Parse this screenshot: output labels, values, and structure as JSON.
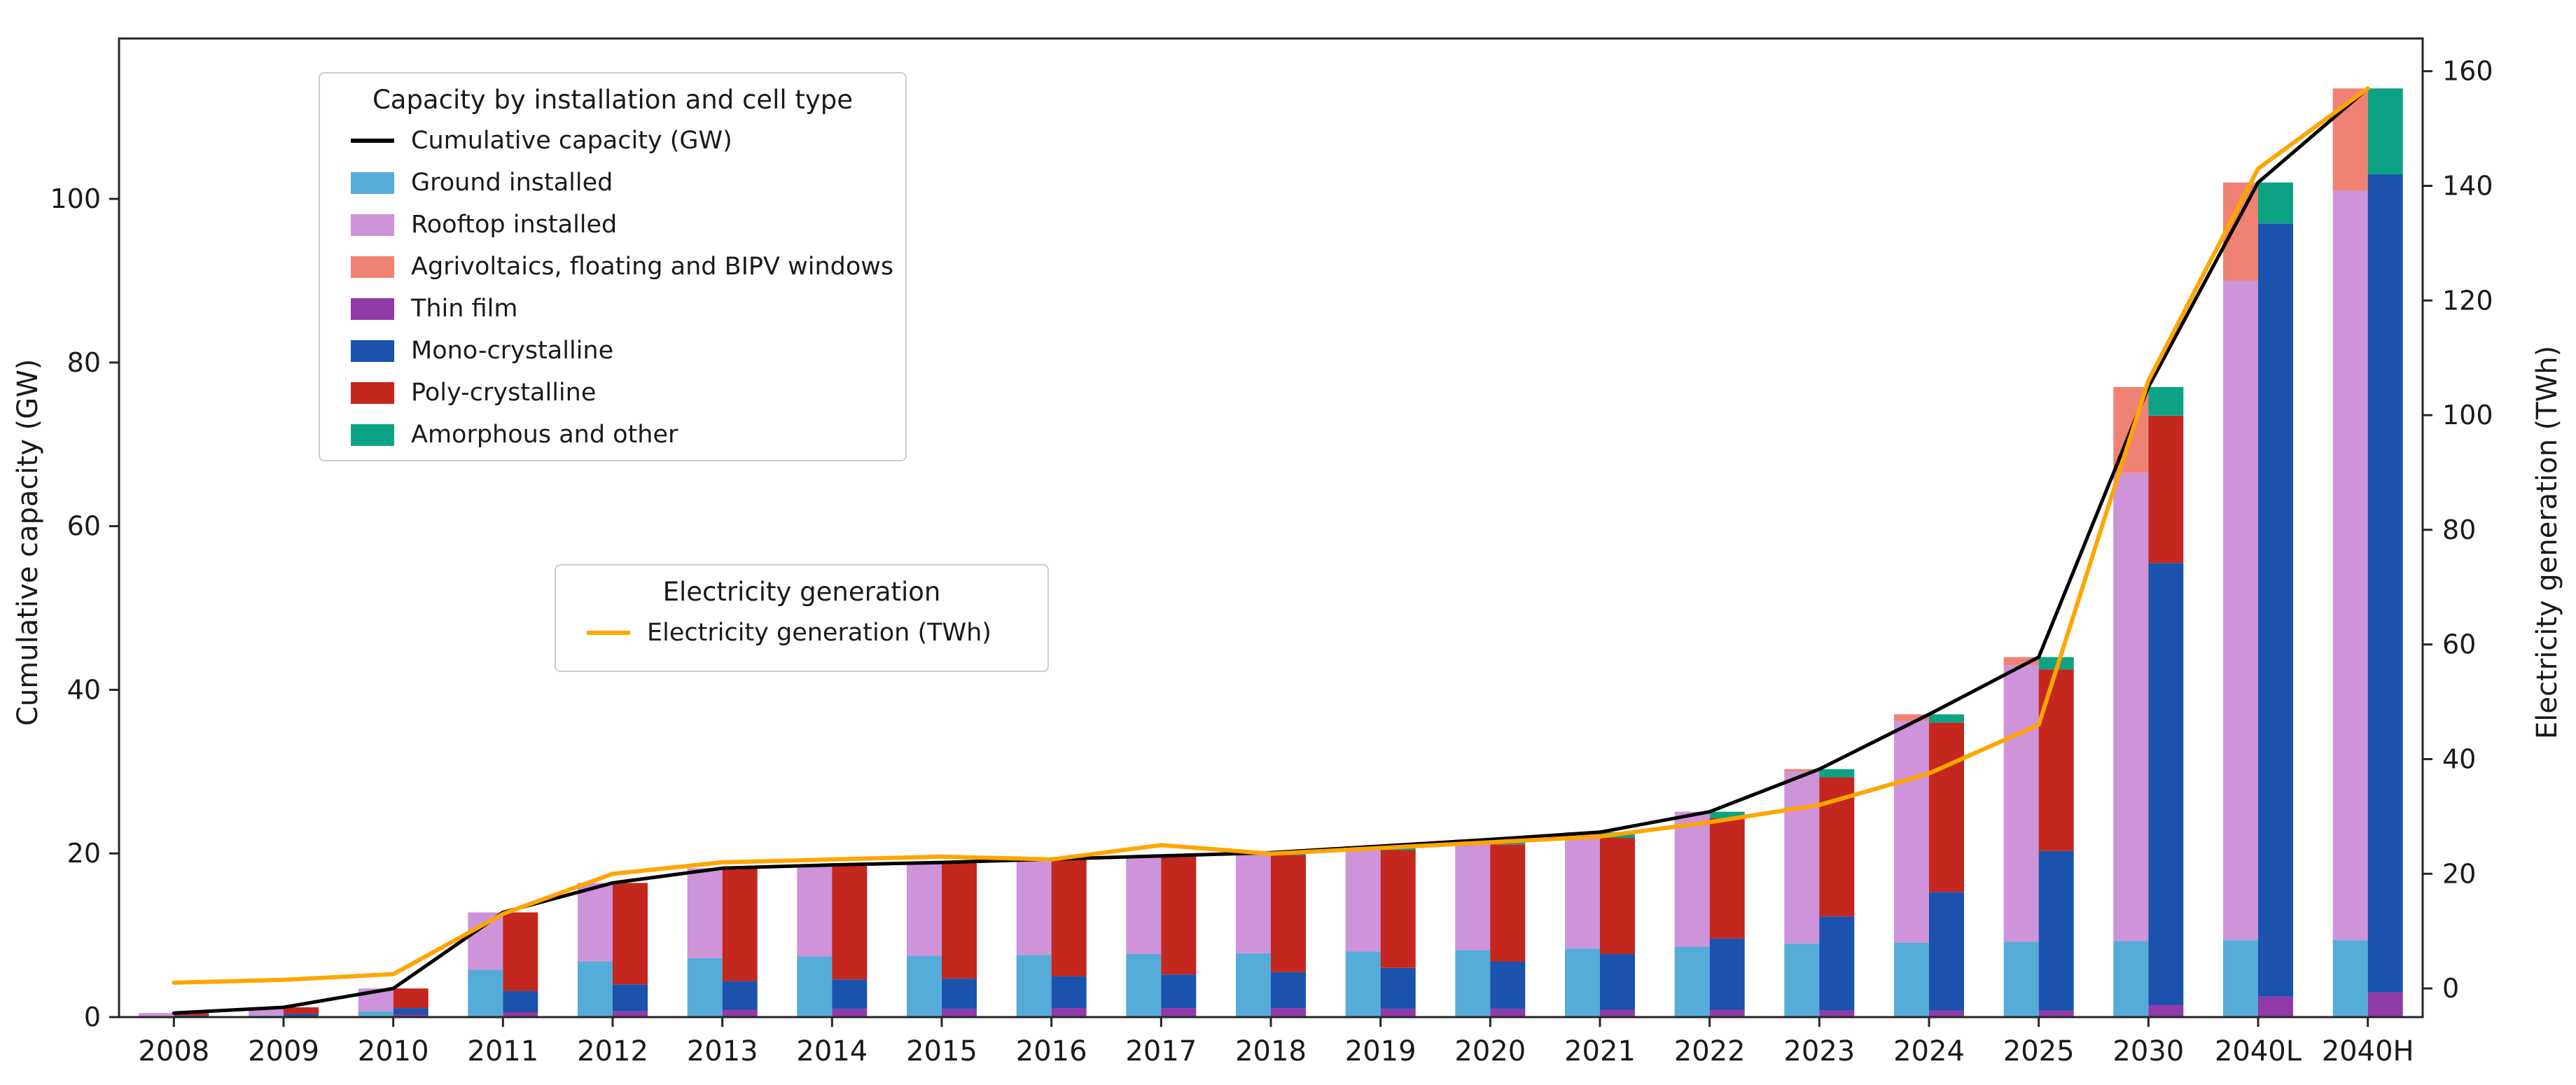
{
  "figure": {
    "background_color": "#ffffff",
    "spine_color": "#262626",
    "left_axis": {
      "label": "Cumulative capacity (GW)",
      "tick_labels": [
        "0",
        "20",
        "40",
        "60",
        "80",
        "100"
      ],
      "tick_values": [
        0,
        20,
        40,
        60,
        80,
        100
      ]
    },
    "right_axis": {
      "label": "Electricity generation (TWh)",
      "tick_labels": [
        "0",
        "20",
        "40",
        "60",
        "80",
        "100",
        "120",
        "140",
        "160"
      ],
      "tick_values": [
        0,
        20,
        40,
        60,
        80,
        100,
        120,
        140,
        160
      ]
    }
  },
  "legend_capacity": {
    "title": "Capacity by installation and cell type",
    "items": [
      {
        "label": "Cumulative capacity (GW)",
        "color": "#000000",
        "type": "line"
      },
      {
        "label": "Ground installed",
        "color": "#56ACD8",
        "type": "patch"
      },
      {
        "label": "Rooftop installed",
        "color": "#CE93D8",
        "type": "patch"
      },
      {
        "label": "Agrivoltaics, floating and BIPV windows",
        "color": "#F08274",
        "type": "patch"
      },
      {
        "label": "Thin film",
        "color": "#9139A8",
        "type": "patch"
      },
      {
        "label": "Mono-crystalline",
        "color": "#1A52AE",
        "type": "patch"
      },
      {
        "label": "Poly-crystalline",
        "color": "#C3271E",
        "type": "patch"
      },
      {
        "label": "Amorphous and other",
        "color": "#0CA384",
        "type": "patch"
      }
    ]
  },
  "legend_generation": {
    "title": "Electricity generation",
    "items": [
      {
        "label": "Electricity generation (TWh)",
        "color": "#FFA500",
        "type": "line"
      }
    ]
  },
  "chart_data": {
    "type": "bar",
    "subtype": "grouped-stacked-bars-with-dual-axis-lines",
    "categories": [
      "2008",
      "2009",
      "2010",
      "2011",
      "2012",
      "2013",
      "2014",
      "2015",
      "2016",
      "2017",
      "2018",
      "2019",
      "2020",
      "2021",
      "2022",
      "2023",
      "2024",
      "2025",
      "2030",
      "2040L",
      "2040H"
    ],
    "xlabel": "",
    "ylabel_left": "Cumulative capacity (GW)",
    "ylabel_right": "Electricity generation (TWh)",
    "left_ylim": [
      0,
      119.6
    ],
    "right_ylim": [
      -5,
      165.7
    ],
    "grid": false,
    "legend_position": "upper-left-inside",
    "bar_groups": [
      {
        "name": "installation_type",
        "position": "left-of-tick",
        "series": [
          {
            "name": "Ground installed",
            "color": "#56ACD8",
            "values": [
              0.1,
              0.2,
              0.7,
              5.8,
              6.8,
              7.2,
              7.4,
              7.5,
              7.6,
              7.7,
              7.8,
              8.0,
              8.2,
              8.4,
              8.6,
              9.0,
              9.1,
              9.2,
              9.3,
              9.4,
              9.4
            ]
          },
          {
            "name": "Rooftop installed",
            "color": "#CE93D8",
            "values": [
              0.4,
              1.0,
              2.8,
              7.0,
              9.6,
              11.0,
              11.2,
              11.4,
              11.7,
              12.0,
              12.3,
              12.9,
              13.5,
              14.2,
              16.5,
              21.0,
              27.1,
              33.8,
              57.2,
              80.6,
              91.6
            ]
          },
          {
            "name": "Agrivoltaics, floating and BIPV windows",
            "color": "#F08274",
            "values": [
              0,
              0,
              0,
              0,
              0,
              0,
              0,
              0,
              0,
              0,
              0,
              0,
              0,
              0,
              0,
              0.3,
              0.8,
              1.0,
              10.5,
              12.0,
              12.5
            ]
          }
        ]
      },
      {
        "name": "cell_type",
        "position": "right-of-tick",
        "series": [
          {
            "name": "Thin film",
            "color": "#9139A8",
            "values": [
              0.1,
              0.1,
              0.3,
              0.6,
              0.7,
              0.9,
              1.0,
              1.0,
              1.1,
              1.1,
              1.1,
              1.0,
              1.0,
              0.9,
              0.9,
              0.8,
              0.8,
              0.8,
              1.5,
              2.5,
              3.0
            ]
          },
          {
            "name": "Mono-crystalline",
            "color": "#1A52AE",
            "values": [
              0.1,
              0.3,
              0.8,
              2.6,
              3.3,
              3.5,
              3.6,
              3.7,
              3.9,
              4.1,
              4.4,
              5.0,
              5.8,
              6.8,
              8.7,
              11.5,
              14.5,
              19.5,
              54.0,
              94.5,
              100.0
            ]
          },
          {
            "name": "Poly-crystalline",
            "color": "#C3271E",
            "values": [
              0.3,
              0.8,
              2.4,
              9.6,
              12.4,
              13.8,
              14.0,
              14.2,
              14.3,
              14.5,
              14.3,
              14.4,
              14.3,
              14.2,
              14.7,
              17.0,
              20.7,
              22.2,
              18.0,
              0,
              0
            ]
          },
          {
            "name": "Amorphous and other",
            "color": "#0CA384",
            "values": [
              0,
              0,
              0,
              0,
              0,
              0,
              0,
              0,
              0,
              0,
              0.3,
              0.5,
              0.6,
              0.7,
              0.8,
              1.0,
              1.0,
              1.5,
              3.5,
              5.0,
              10.5
            ]
          }
        ]
      }
    ],
    "lines": [
      {
        "name": "Cumulative capacity (GW)",
        "axis": "left",
        "color": "#000000",
        "width": 5,
        "values": [
          0.5,
          1.2,
          3.5,
          12.8,
          16.4,
          18.2,
          18.6,
          18.9,
          19.3,
          19.7,
          20.1,
          20.9,
          21.7,
          22.6,
          25.1,
          30.3,
          37.0,
          44.0,
          77.0,
          102.0,
          113.5
        ]
      },
      {
        "name": "Electricity generation (TWh)",
        "axis": "right",
        "color": "#FFA500",
        "width": 6,
        "values": [
          1.0,
          1.5,
          2.5,
          13.0,
          20.0,
          22.0,
          22.5,
          23.0,
          22.5,
          25.0,
          23.5,
          24.5,
          25.5,
          26.5,
          29.0,
          32.0,
          37.5,
          46.0,
          106.0,
          143.0,
          157.0
        ]
      }
    ]
  }
}
